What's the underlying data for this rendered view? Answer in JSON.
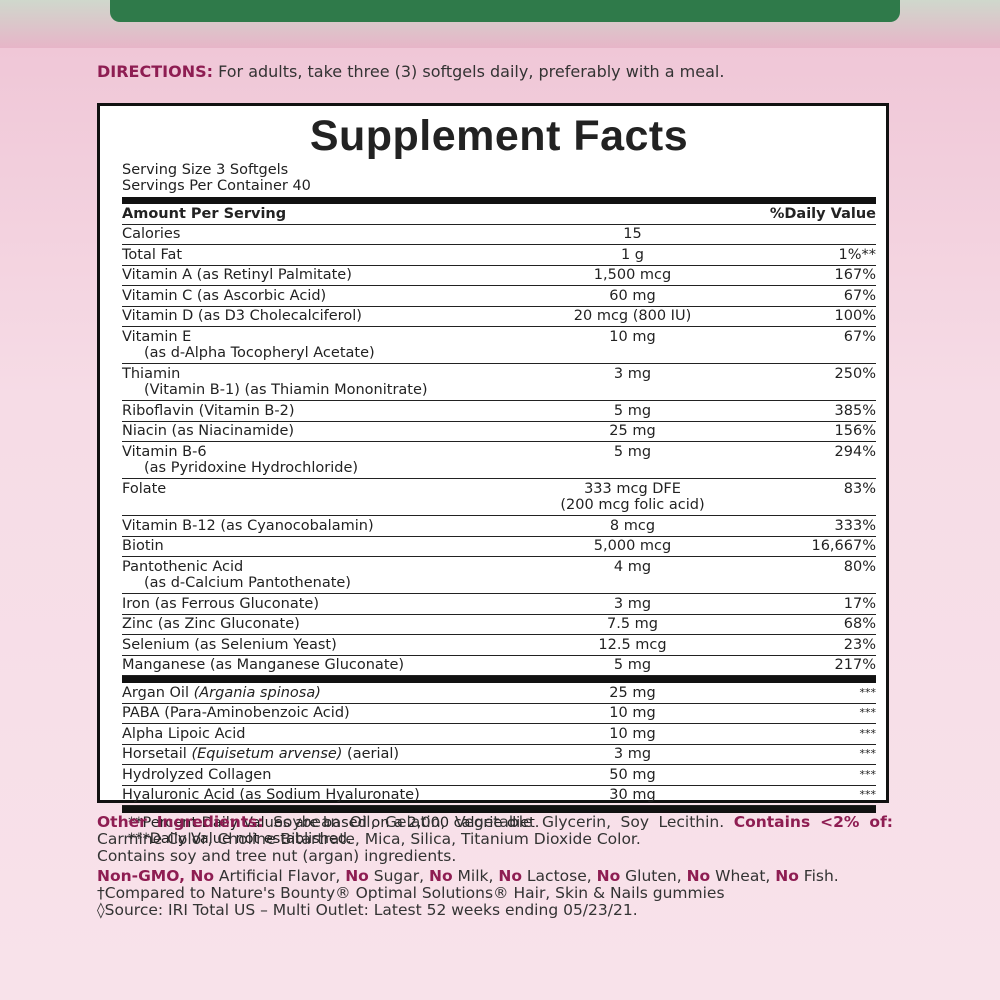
{
  "directions": {
    "label": "DIRECTIONS:",
    "text": " For adults, take three (3) softgels daily, preferably with a meal."
  },
  "facts": {
    "title": "Supplement Facts",
    "serving_size": "Serving Size 3 Softgels",
    "servings": "Servings Per Container 40",
    "header": [
      "Amount Per Serving",
      "%Daily Value"
    ],
    "groups": [
      [
        {
          "name": "Calories",
          "amount": "15"
        },
        {
          "name": "Total Fat",
          "amount": "1 g",
          "dv": "1%**"
        },
        {
          "name": "Vitamin A (as Retinyl Palmitate)",
          "amount": "1,500 mcg",
          "dv": "167%"
        },
        {
          "name": "Vitamin C (as Ascorbic Acid)",
          "amount": "60 mg",
          "dv": "67%"
        },
        {
          "name": "Vitamin D (as D3 Cholecalciferol)",
          "amount": "20 mcg (800 IU)",
          "dv": "100%"
        },
        {
          "name": "Vitamin E",
          "detail": "(as d-Alpha Tocopheryl Acetate)",
          "amount": "10 mg",
          "dv": "67%"
        },
        {
          "name": "Thiamin",
          "detail": "(Vitamin B-1) (as Thiamin Mononitrate)",
          "amount": "3 mg",
          "dv": "250%"
        },
        {
          "name": "Riboflavin (Vitamin B-2)",
          "amount": "5 mg",
          "dv": "385%"
        },
        {
          "name": "Niacin (as Niacinamide)",
          "amount": "25 mg",
          "dv": "156%"
        },
        {
          "name": "Vitamin B-6",
          "detail": "(as Pyridoxine Hydrochloride)",
          "amount": "5 mg",
          "dv": "294%"
        },
        {
          "name": "Folate",
          "amount": "333 mcg DFE",
          "amount_detail": "(200 mcg folic acid)",
          "dv": "83%"
        },
        {
          "name": "Vitamin B-12 (as Cyanocobalamin)",
          "amount": "8 mcg",
          "dv": "333%"
        },
        {
          "name": "Biotin",
          "amount": "5,000 mcg",
          "dv": "16,667%"
        },
        {
          "name": "Pantothenic Acid",
          "detail": "(as d-Calcium Pantothenate)",
          "amount": "4 mg",
          "dv": "80%"
        },
        {
          "name": "Iron (as Ferrous Gluconate)",
          "amount": "3 mg",
          "dv": "17%"
        },
        {
          "name": "Zinc (as Zinc Gluconate)",
          "amount": "7.5 mg",
          "dv": "68%"
        },
        {
          "name": "Selenium (as Selenium Yeast)",
          "amount": "12.5 mcg",
          "dv": "23%"
        },
        {
          "name": "Manganese (as Manganese Gluconate)",
          "amount": "5 mg",
          "dv": "217%"
        }
      ],
      [
        {
          "name": [
            "Argan Oil ",
            "(Argania spinosa)"
          ],
          "amount": "25 mg",
          "dv": "***"
        },
        {
          "name": "PABA (Para-Aminobenzoic Acid)",
          "amount": "10 mg",
          "dv": "***"
        },
        {
          "name": "Alpha Lipoic Acid",
          "amount": "10 mg",
          "dv": "***"
        },
        {
          "name": [
            "Horsetail ",
            "(Equisetum arvense)",
            " (aerial)"
          ],
          "amount": "3 mg",
          "dv": "***"
        },
        {
          "name": "Hydrolyzed Collagen",
          "amount": "50 mg",
          "dv": "***"
        },
        {
          "name": "Hyaluronic Acid (as Sodium Hyaluronate)",
          "amount": "30 mg",
          "dv": "***"
        }
      ]
    ],
    "footnotes": [
      "**Percent Daily Values are based on a 2,000 calorie diet.",
      "***Daily Value not established."
    ]
  },
  "notes": [
    [
      "Other Ingredients:",
      " Soybean Oil, Gelatin, Vegetable Glycerin, Soy Lecithin. ",
      "Contains <2% of:",
      " Carmine Color, Choline Bitartrate, Mica, Silica, Titanium Dioxide Color."
    ],
    [
      "Contains soy and tree nut (argan) ingredients."
    ],
    [
      "Non-GMO, No",
      " Artificial Flavor, ",
      "No",
      " Sugar, ",
      "No",
      " Milk, ",
      "No",
      " Lactose, ",
      "No",
      " Gluten, ",
      "No",
      " Wheat, ",
      "No",
      " Fish."
    ],
    [
      "†Compared to Nature's Bounty® Optimal Solutions® Hair, Skin & Nails gummies"
    ],
    [
      "◊Source: IRI Total US – Multi Outlet: Latest 52 weeks ending 05/23/21."
    ]
  ]
}
